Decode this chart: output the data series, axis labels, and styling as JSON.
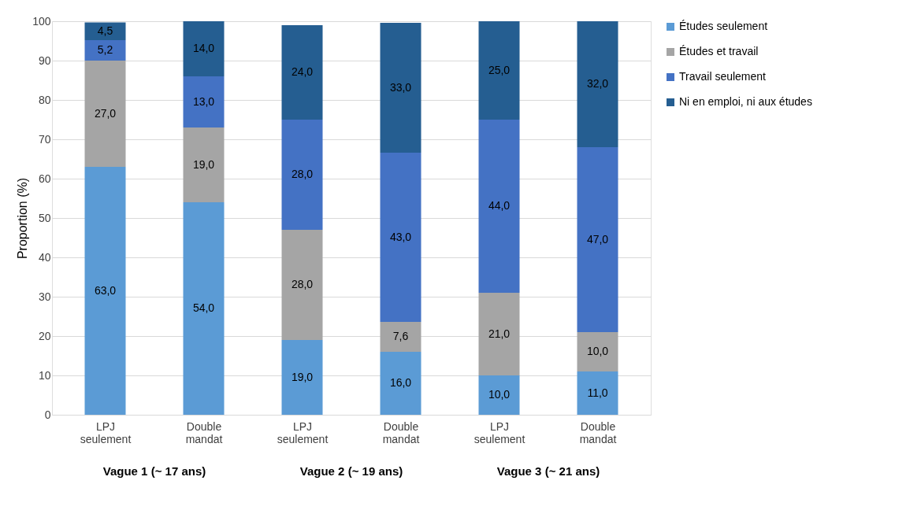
{
  "chart_data": {
    "type": "bar",
    "stacked": true,
    "categories": [
      "LPJ seulement",
      "Double mandat",
      "LPJ seulement",
      "Double mandat",
      "LPJ seulement",
      "Double mandat"
    ],
    "ylabel": "Proportion (%)",
    "ylim": [
      0,
      100
    ],
    "yticks": [
      0,
      10,
      20,
      30,
      40,
      50,
      60,
      70,
      80,
      90,
      100
    ],
    "grid": "y",
    "legend": "right",
    "annotations": [
      "Vague 1 (~ 17 ans)",
      "Vague 2 (~ 19 ans)",
      "Vague 3 (~ 21 ans)"
    ],
    "series": [
      {
        "name": "Études seulement",
        "color": "#5b9bd5",
        "values": [
          63,
          54,
          19,
          16,
          10,
          11
        ],
        "value_labels": [
          "63,0",
          "54,0",
          "19,0",
          "16,0",
          "10,0",
          "11,0"
        ]
      },
      {
        "name": "Études et travail",
        "color": "#a5a5a5",
        "values": [
          27,
          19,
          28,
          7.6,
          21,
          10
        ],
        "value_labels": [
          "27,0",
          "19,0",
          "28,0",
          "7,6",
          "21,0",
          "10,0"
        ]
      },
      {
        "name": "Travail seulement",
        "color": "#4472c4",
        "values": [
          5.2,
          13,
          28,
          43,
          44,
          47
        ],
        "value_labels": [
          "5,2",
          "13,0",
          "28,0",
          "43,0",
          "44,0",
          "47,0"
        ]
      },
      {
        "name": "Ni en emploi, ni aux études",
        "color": "#255e91",
        "values": [
          4.5,
          14,
          24,
          33,
          25,
          32
        ],
        "value_labels": [
          "4,5",
          "14,0",
          "24,0",
          "33,0",
          "25,0",
          "32,0"
        ]
      }
    ]
  }
}
